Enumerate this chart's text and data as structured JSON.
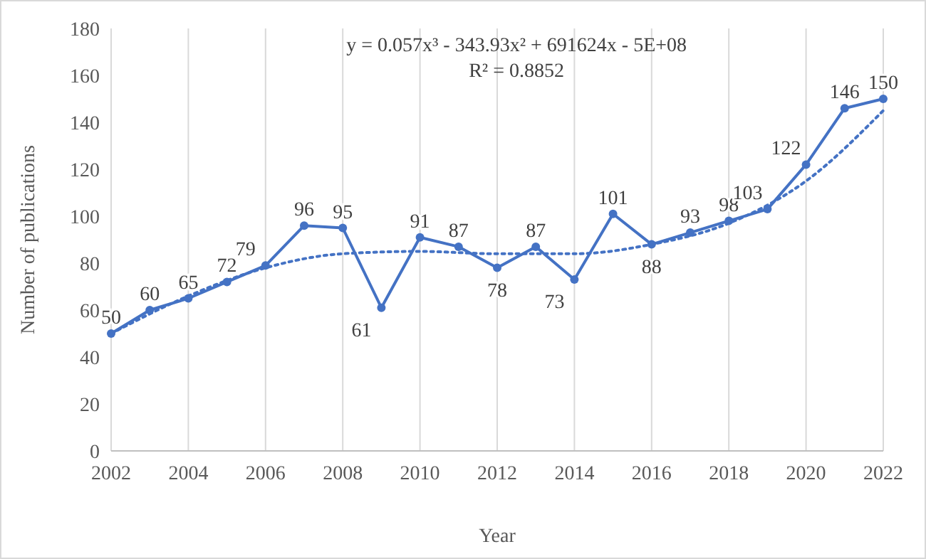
{
  "chart_data": {
    "type": "line",
    "xlabel": "Year",
    "ylabel": "Number of publications",
    "x": [
      2002,
      2003,
      2004,
      2005,
      2006,
      2007,
      2008,
      2009,
      2010,
      2011,
      2012,
      2013,
      2014,
      2015,
      2016,
      2017,
      2018,
      2019,
      2020,
      2021,
      2022
    ],
    "series": [
      {
        "color": "#4472c4",
        "marker": "circle",
        "line_style": "solid",
        "data_labels": true,
        "values": [
          50,
          60,
          65,
          72,
          79,
          96,
          95,
          61,
          91,
          87,
          78,
          87,
          73,
          101,
          88,
          93,
          98,
          103,
          122,
          146,
          150
        ]
      },
      {
        "color": "#4472c4",
        "marker": "none",
        "line_style": "dotted",
        "x": [
          2002,
          2004,
          2006,
          2008,
          2010,
          2012,
          2014,
          2016,
          2018,
          2020,
          2022
        ],
        "values": [
          50,
          66,
          78,
          84,
          85,
          84,
          84,
          88,
          97,
          115,
          145
        ]
      }
    ],
    "xlim": [
      2002,
      2022
    ],
    "xticks": [
      2002,
      2004,
      2006,
      2008,
      2010,
      2012,
      2014,
      2016,
      2018,
      2020,
      2022
    ],
    "ylim": [
      0,
      180
    ],
    "yticks": [
      0,
      20,
      40,
      60,
      80,
      100,
      120,
      140,
      160,
      180
    ],
    "grid": "x",
    "annotations": [
      "y = 0.057x³ - 343.93x² + 691624x - 5E+08",
      "R² = 0.8852"
    ]
  }
}
